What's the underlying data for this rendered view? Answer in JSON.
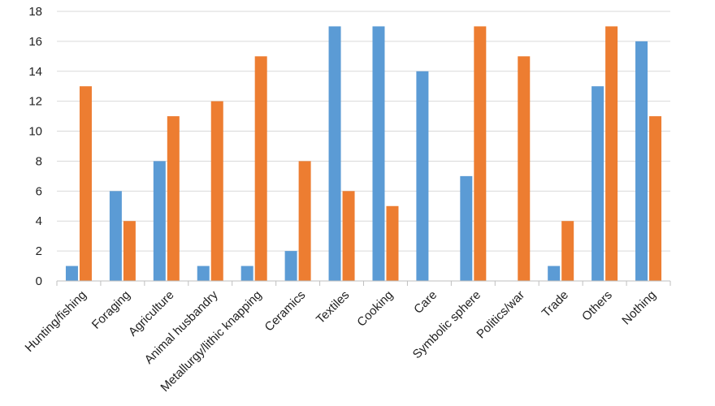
{
  "chart_data": {
    "type": "bar",
    "categories": [
      "Hunting/fishing",
      "Foraging",
      "Agriculture",
      "Animal husbandry",
      "Metallurgy/lithic knapping",
      "Ceramics",
      "Textiles",
      "Cooking",
      "Care",
      "Symbolic sphere",
      "Politics/war",
      "Trade",
      "Others",
      "Nothing"
    ],
    "series": [
      {
        "color": "#5b9bd5",
        "values": [
          1,
          6,
          8,
          1,
          1,
          2,
          17,
          17,
          14,
          7,
          0,
          1,
          13,
          16
        ]
      },
      {
        "color": "#ed7d31",
        "values": [
          13,
          4,
          11,
          12,
          15,
          8,
          6,
          5,
          0,
          17,
          15,
          4,
          17,
          11
        ]
      }
    ],
    "ylim": [
      0,
      18
    ],
    "yticks": [
      0,
      2,
      4,
      6,
      8,
      10,
      12,
      14,
      16,
      18
    ],
    "grid": true,
    "legend": "none"
  }
}
